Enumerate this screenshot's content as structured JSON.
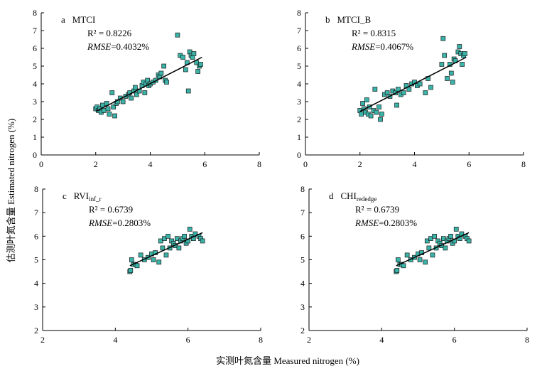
{
  "figure": {
    "xlabel": "实测叶氮含量 Measured nitrogen (%)",
    "ylabel": "估测叶氮含量 Estimated nitrogen (%)",
    "marker_color": "#3ab3a8",
    "line_color": "#000000"
  },
  "chart_data": [
    {
      "type": "scatter",
      "panel_letter": "a",
      "panel_name": "MTCI",
      "name_subscript": "",
      "r2_label": "R² = 0.8226",
      "rmse_label": "RMSE",
      "rmse_value": "=0.4032%",
      "xlim": [
        0,
        8
      ],
      "ylim": [
        0,
        8
      ],
      "xticks": [
        "0",
        "2",
        "4",
        "6",
        "8"
      ],
      "yticks": [
        "0",
        "1",
        "2",
        "3",
        "4",
        "5",
        "6",
        "7",
        "8"
      ],
      "fit_line": {
        "x": [
          2.0,
          5.9
        ],
        "y": [
          2.45,
          5.5
        ]
      },
      "x": [
        2.0,
        2.05,
        2.1,
        2.15,
        2.2,
        2.25,
        2.3,
        2.4,
        2.45,
        2.5,
        2.6,
        2.65,
        2.7,
        2.75,
        2.8,
        2.9,
        3.0,
        3.1,
        3.2,
        3.25,
        3.3,
        3.4,
        3.45,
        3.5,
        3.6,
        3.7,
        3.75,
        3.8,
        3.85,
        3.9,
        3.95,
        4.0,
        4.1,
        4.2,
        4.3,
        4.35,
        4.4,
        4.5,
        4.55,
        4.6,
        5.0,
        5.1,
        5.2,
        5.3,
        5.35,
        5.4,
        5.45,
        5.5,
        5.55,
        5.6,
        5.7,
        5.75,
        5.8,
        5.85
      ],
      "y": [
        2.6,
        2.7,
        2.5,
        2.6,
        2.4,
        2.8,
        2.5,
        2.9,
        2.6,
        2.3,
        3.5,
        2.7,
        2.2,
        2.9,
        3.0,
        3.2,
        3.0,
        3.3,
        3.4,
        3.5,
        3.2,
        3.6,
        3.8,
        3.4,
        3.6,
        3.9,
        4.1,
        3.5,
        4.0,
        4.2,
        3.9,
        4.0,
        4.1,
        4.2,
        4.5,
        4.4,
        4.6,
        5.0,
        4.2,
        4.1,
        6.75,
        5.6,
        5.5,
        4.8,
        5.2,
        3.6,
        5.8,
        5.6,
        5.5,
        5.7,
        5.2,
        4.7,
        5.0,
        5.1
      ]
    },
    {
      "type": "scatter",
      "panel_letter": "b",
      "panel_name": "MTCI_B",
      "name_subscript": "",
      "r2_label": "R² = 0.8315",
      "rmse_label": "RMSE",
      "rmse_value": "=0.4067%",
      "xlim": [
        0,
        8
      ],
      "ylim": [
        0,
        8
      ],
      "xticks": [
        "0",
        "2",
        "4",
        "6",
        "8"
      ],
      "yticks": [
        "0",
        "1",
        "2",
        "3",
        "4",
        "5",
        "6",
        "7",
        "8"
      ],
      "fit_line": {
        "x": [
          2.0,
          5.9
        ],
        "y": [
          2.45,
          5.5
        ]
      },
      "x": [
        2.0,
        2.05,
        2.1,
        2.15,
        2.2,
        2.25,
        2.3,
        2.35,
        2.4,
        2.5,
        2.55,
        2.6,
        2.7,
        2.75,
        2.8,
        2.9,
        3.0,
        3.1,
        3.2,
        3.3,
        3.35,
        3.4,
        3.5,
        3.6,
        3.7,
        3.8,
        3.9,
        4.0,
        4.1,
        4.2,
        4.4,
        4.5,
        4.6,
        5.0,
        5.05,
        5.1,
        5.2,
        5.3,
        5.35,
        5.4,
        5.45,
        5.5,
        5.6,
        5.65,
        5.7,
        5.75,
        5.8,
        5.85
      ],
      "y": [
        2.5,
        2.3,
        2.9,
        2.6,
        2.4,
        3.1,
        2.3,
        2.7,
        2.2,
        2.5,
        3.7,
        2.4,
        2.7,
        2.0,
        2.3,
        3.4,
        3.5,
        3.3,
        3.6,
        3.5,
        2.8,
        3.7,
        3.4,
        3.5,
        3.9,
        3.7,
        4.0,
        4.1,
        3.9,
        4.0,
        3.5,
        4.3,
        3.8,
        5.1,
        6.55,
        5.6,
        4.3,
        5.1,
        4.6,
        4.1,
        5.4,
        5.3,
        5.8,
        6.1,
        5.7,
        5.1,
        5.6,
        5.7
      ]
    },
    {
      "type": "scatter",
      "panel_letter": "c",
      "panel_name": "RVI",
      "name_subscript": "inf_r",
      "r2_label": "R² = 0.6739",
      "rmse_label": "RMSE",
      "rmse_value": "=0.2803%",
      "xlim": [
        2,
        8
      ],
      "ylim": [
        2,
        8
      ],
      "xticks": [
        "2",
        "4",
        "6",
        "8"
      ],
      "yticks": [
        "2",
        "3",
        "4",
        "5",
        "6",
        "7",
        "8"
      ],
      "fit_line": {
        "x": [
          4.4,
          6.4
        ],
        "y": [
          4.75,
          6.15
        ]
      },
      "x": [
        4.4,
        4.42,
        4.45,
        4.5,
        4.55,
        4.6,
        4.7,
        4.8,
        4.9,
        5.0,
        5.05,
        5.1,
        5.2,
        5.25,
        5.3,
        5.35,
        5.4,
        5.45,
        5.5,
        5.55,
        5.6,
        5.65,
        5.7,
        5.75,
        5.8,
        5.85,
        5.9,
        5.95,
        6.0,
        6.05,
        6.1,
        6.15,
        6.2,
        6.3,
        6.35,
        6.4
      ],
      "y": [
        4.5,
        4.55,
        5.0,
        4.8,
        4.8,
        4.75,
        5.2,
        5.0,
        5.1,
        5.25,
        5.0,
        5.3,
        4.9,
        5.8,
        5.5,
        5.9,
        5.2,
        6.0,
        5.5,
        5.8,
        5.7,
        5.6,
        5.9,
        5.5,
        5.8,
        5.9,
        6.0,
        5.7,
        5.8,
        6.3,
        6.0,
        5.9,
        6.1,
        6.0,
        5.9,
        5.8
      ]
    },
    {
      "type": "scatter",
      "panel_letter": "d",
      "panel_name": "CHI",
      "name_subscript": "rededge",
      "r2_label": "R² = 0.6739",
      "rmse_label": "RMSE",
      "rmse_value": "=0.2803%",
      "xlim": [
        2,
        8
      ],
      "ylim": [
        2,
        8
      ],
      "xticks": [
        "2",
        "4",
        "6",
        "8"
      ],
      "yticks": [
        "2",
        "3",
        "4",
        "5",
        "6",
        "7",
        "8"
      ],
      "fit_line": {
        "x": [
          4.4,
          6.4
        ],
        "y": [
          4.75,
          6.15
        ]
      },
      "x": [
        4.4,
        4.42,
        4.45,
        4.5,
        4.55,
        4.6,
        4.7,
        4.8,
        4.9,
        5.0,
        5.05,
        5.1,
        5.2,
        5.25,
        5.3,
        5.35,
        5.4,
        5.45,
        5.5,
        5.55,
        5.6,
        5.65,
        5.7,
        5.75,
        5.8,
        5.85,
        5.9,
        5.95,
        6.0,
        6.05,
        6.1,
        6.15,
        6.2,
        6.3,
        6.35,
        6.4
      ],
      "y": [
        4.5,
        4.55,
        5.0,
        4.8,
        4.8,
        4.75,
        5.2,
        5.0,
        5.1,
        5.25,
        5.0,
        5.3,
        4.9,
        5.8,
        5.5,
        5.9,
        5.2,
        6.0,
        5.5,
        5.8,
        5.7,
        5.6,
        5.9,
        5.5,
        5.8,
        5.9,
        6.0,
        5.7,
        5.8,
        6.3,
        6.0,
        5.9,
        6.1,
        6.0,
        5.9,
        5.8
      ]
    }
  ]
}
